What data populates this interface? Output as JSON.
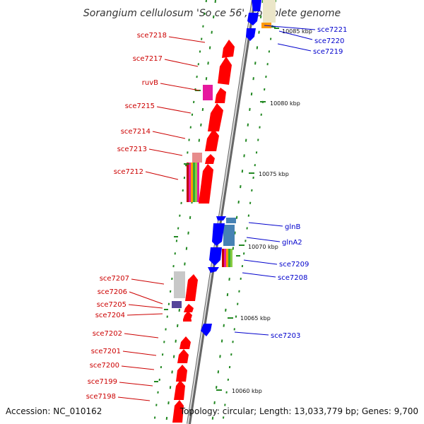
{
  "title": "Sorangium cellulosum 'So ce 56', complete genome",
  "footer": {
    "accession": "Accession: NC_010162",
    "topology": "Topology: circular; Length: 13,033,779 bp; Genes: 9,700"
  },
  "colors": {
    "forward": "#ff0000",
    "reverse": "#0000ff",
    "label_left": "#cc0000",
    "label_right": "#0000cc",
    "backbone": "#999999",
    "tick": "#228822"
  },
  "kbp_labels": [
    "10085 kbp",
    "10080 kbp",
    "10075 kbp",
    "10070 kbp",
    "10065 kbp",
    "10060 kbp"
  ],
  "left_labels": [
    "sce7218",
    "sce7217",
    "ruvB",
    "sce7215",
    "sce7214",
    "sce7213",
    "sce7212",
    "sce7207",
    "sce7206",
    "sce7205",
    "sce7204",
    "sce7202",
    "sce7201",
    "sce7200",
    "sce7199",
    "sce7198"
  ],
  "right_labels": [
    "sce7221",
    "sce7220",
    "sce7219",
    "glnB",
    "glnA2",
    "sce7209",
    "sce7208",
    "sce7203"
  ]
}
